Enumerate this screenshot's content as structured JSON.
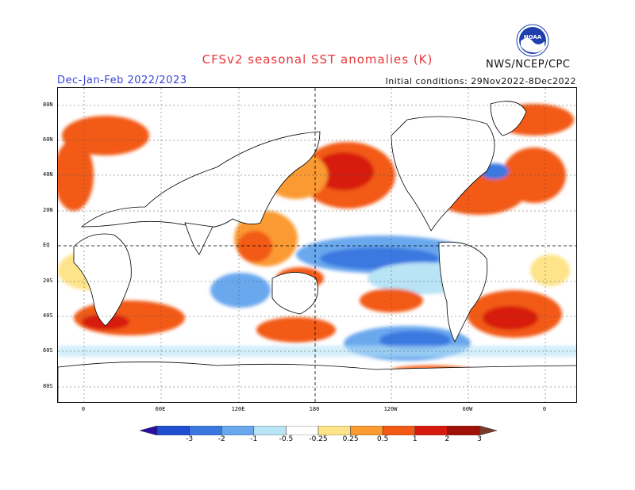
{
  "title": "CFSv2 seasonal SST anomalies (K)",
  "period": "Dec-Jan-Feb 2022/2023",
  "initial_conditions": "Initial conditions: 29Nov2022-8Dec2022",
  "agency": "NWS/NCEP/CPC",
  "logo": {
    "text": "NOAA",
    "icon": "noaa-logo-icon",
    "colors": {
      "sky": "#1f3fae",
      "gull": "#ffffff",
      "ring": "#ffffff"
    }
  },
  "map": {
    "lat_labels": [
      "80N",
      "60N",
      "40N",
      "20N",
      "EQ",
      "20S",
      "40S",
      "60S",
      "80S"
    ],
    "lon_labels": [
      "0",
      "60E",
      "120E",
      "180",
      "120W",
      "60W",
      "0"
    ],
    "land_color": "#ffffff",
    "ocean_neutral": "#ffffff"
  },
  "colorbar": {
    "labels": [
      "-3",
      "-2",
      "-1",
      "-0.5",
      "-0.25",
      "0.25",
      "0.5",
      "1",
      "2",
      "3"
    ],
    "colors": [
      "#2a0fa0",
      "#1d4fd0",
      "#3a78e0",
      "#6aa8ee",
      "#b8e4f6",
      "#ffffff",
      "#fde48a",
      "#fb9a30",
      "#f25a16",
      "#d71a10",
      "#a00f08",
      "#7a3a2a"
    ]
  }
}
